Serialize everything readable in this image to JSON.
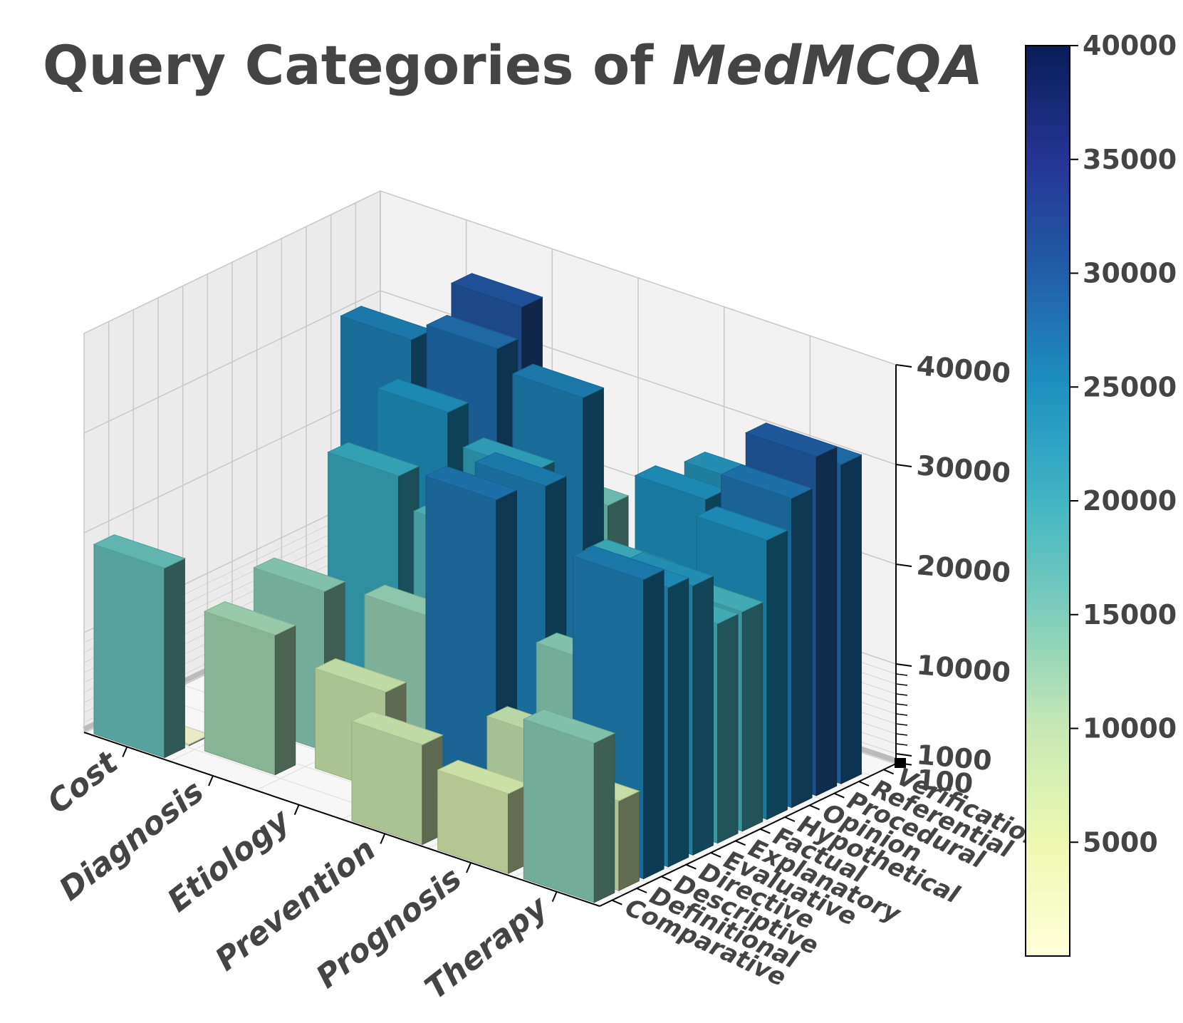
{
  "chart_data": {
    "type": "bar3d",
    "title": "Query Categories of",
    "title_emphasis": "MedMCQA",
    "x_categories": [
      "Cost",
      "Diagnosis",
      "Etiology",
      "Prevention",
      "Prognosis",
      "Therapy"
    ],
    "y_categories": [
      "Comparative",
      "Definitional",
      "Descriptive",
      "Directive",
      "Evaluative",
      "Explanatory",
      "Factual",
      "Hypothetical",
      "Opinion",
      "Procedural",
      "Referential",
      "Verification"
    ],
    "z_ticks": [
      "100",
      "1000",
      "10000",
      "20000",
      "30000",
      "40000"
    ],
    "z_lim": [
      0,
      40000
    ],
    "colorbar": {
      "ticks": [
        "5000",
        "10000",
        "15000",
        "20000",
        "25000",
        "30000",
        "35000",
        "40000"
      ],
      "range": [
        0,
        40000
      ],
      "colormap": "YlGnBu"
    },
    "series": [
      {
        "name": "Cost",
        "values": [
          19000,
          150,
          0,
          0,
          0,
          0,
          0,
          0,
          0,
          0,
          30000,
          0
        ]
      },
      {
        "name": "Diagnosis",
        "values": [
          0,
          14000,
          0,
          16000,
          0,
          0,
          24000,
          0,
          28000,
          0,
          32000,
          35000
        ]
      },
      {
        "name": "Etiology",
        "values": [
          0,
          0,
          10000,
          0,
          15000,
          0,
          21000,
          0,
          25000,
          0,
          30000,
          18000
        ]
      },
      {
        "name": "Prevention",
        "values": [
          10000,
          0,
          0,
          31000,
          0,
          30000,
          0,
          0,
          0,
          0,
          0,
          0
        ]
      },
      {
        "name": "Prognosis",
        "values": [
          8000,
          0,
          11000,
          0,
          16000,
          0,
          23000,
          0,
          28000,
          0,
          27000,
          0
        ]
      },
      {
        "name": "Therapy",
        "values": [
          16000,
          9000,
          30000,
          28000,
          27000,
          22000,
          22000,
          28000,
          31000,
          34000,
          32000,
          0
        ]
      }
    ]
  }
}
